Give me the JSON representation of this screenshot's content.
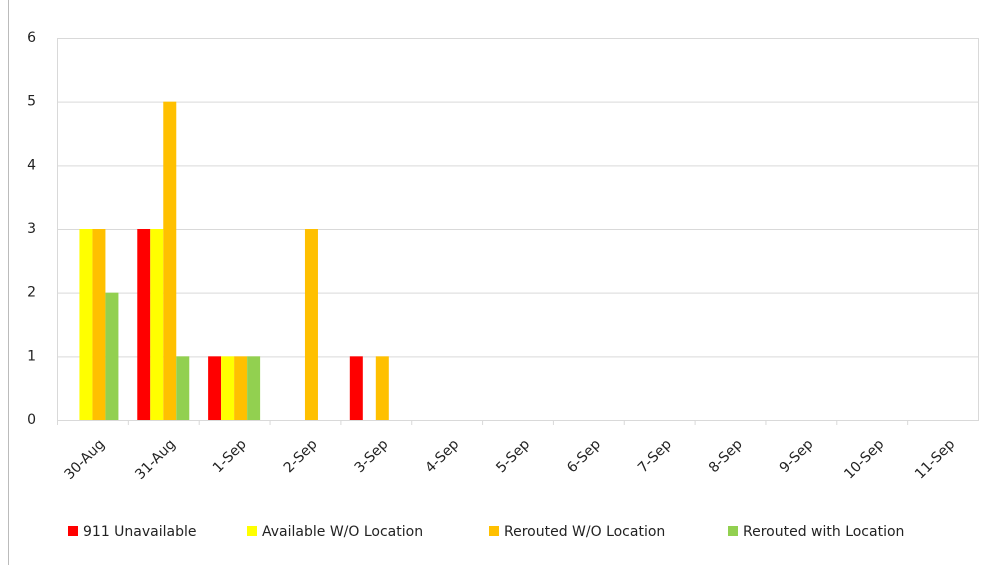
{
  "chart_data": {
    "type": "bar",
    "categories": [
      "30-Aug",
      "31-Aug",
      "1-Sep",
      "2-Sep",
      "3-Sep",
      "4-Sep",
      "5-Sep",
      "6-Sep",
      "7-Sep",
      "8-Sep",
      "9-Sep",
      "10-Sep",
      "11-Sep"
    ],
    "series": [
      {
        "name": "911 Unavailable",
        "color": "#ff0000",
        "values": [
          0,
          3,
          1,
          0,
          1,
          0,
          0,
          0,
          0,
          0,
          0,
          0,
          0
        ]
      },
      {
        "name": "Available W/O Location",
        "color": "#ffff00",
        "values": [
          3,
          3,
          1,
          0,
          0,
          0,
          0,
          0,
          0,
          0,
          0,
          0,
          0
        ]
      },
      {
        "name": "Rerouted W/O Location",
        "color": "#ffc000",
        "values": [
          3,
          5,
          1,
          3,
          1,
          0,
          0,
          0,
          0,
          0,
          0,
          0,
          0
        ]
      },
      {
        "name": "Rerouted with Location",
        "color": "#92d050",
        "values": [
          2,
          1,
          1,
          0,
          0,
          0,
          0,
          0,
          0,
          0,
          0,
          0,
          0
        ]
      }
    ],
    "ylim": [
      0,
      6
    ],
    "yticks": [
      0,
      1,
      2,
      3,
      4,
      5,
      6
    ],
    "grid": true,
    "legend": "bottom"
  }
}
